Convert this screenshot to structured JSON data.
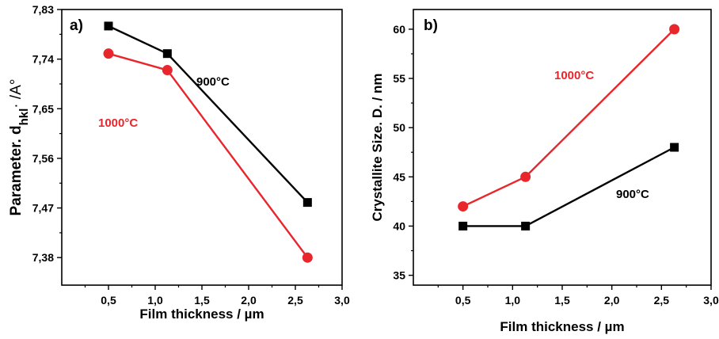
{
  "colors": {
    "series_900": "#000000",
    "series_1000": "#e8262b"
  },
  "chart_data": [
    {
      "type": "line",
      "panel_label": "a)",
      "xlabel": "Film thickness / µm",
      "ylabel_prefix": "Parameter. d",
      "ylabel_sub": "hkl",
      "ylabel_suffix": "· /A°",
      "xlim": [
        0,
        3.0
      ],
      "ylim": [
        7.33,
        7.83
      ],
      "xticks": [
        0.5,
        1.0,
        1.5,
        2.0,
        2.5,
        3.0
      ],
      "xtick_labels": [
        "0,5",
        "1,0",
        "1,5",
        "2,0",
        "2,5",
        "3,0"
      ],
      "yticks": [
        7.38,
        7.47,
        7.56,
        7.65,
        7.74,
        7.83
      ],
      "ytick_labels": [
        "7,38",
        "7,47",
        "7,56",
        "7,65",
        "7,74",
        "7,83"
      ],
      "series": [
        {
          "name": "900°C",
          "marker": "square",
          "color": "#000000",
          "x": [
            0.5,
            1.13,
            2.63
          ],
          "y": [
            7.8,
            7.75,
            7.48
          ]
        },
        {
          "name": "1000°C",
          "marker": "circle",
          "color": "#e8262b",
          "x": [
            0.5,
            1.13,
            2.63
          ],
          "y": [
            7.75,
            7.72,
            7.38
          ]
        }
      ]
    },
    {
      "type": "line",
      "panel_label": "b)",
      "xlabel": "Film thickness / µm",
      "ylabel": "Crystallite Size. D. / nm",
      "xlim": [
        0,
        3.0
      ],
      "ylim": [
        34,
        62
      ],
      "xticks": [
        0.5,
        1.0,
        1.5,
        2.0,
        2.5,
        3.0
      ],
      "xtick_labels": [
        "0,5",
        "1,0",
        "1,5",
        "2,0",
        "2,5",
        "3,0"
      ],
      "yticks": [
        35,
        40,
        45,
        50,
        55,
        60
      ],
      "ytick_labels": [
        "35",
        "40",
        "45",
        "50",
        "55",
        "60"
      ],
      "series": [
        {
          "name": "900°C",
          "marker": "square",
          "color": "#000000",
          "x": [
            0.5,
            1.13,
            2.63
          ],
          "y": [
            40,
            40,
            48
          ]
        },
        {
          "name": "1000°C",
          "marker": "circle",
          "color": "#e8262b",
          "x": [
            0.5,
            1.13,
            2.63
          ],
          "y": [
            42,
            45,
            60
          ]
        }
      ]
    }
  ]
}
